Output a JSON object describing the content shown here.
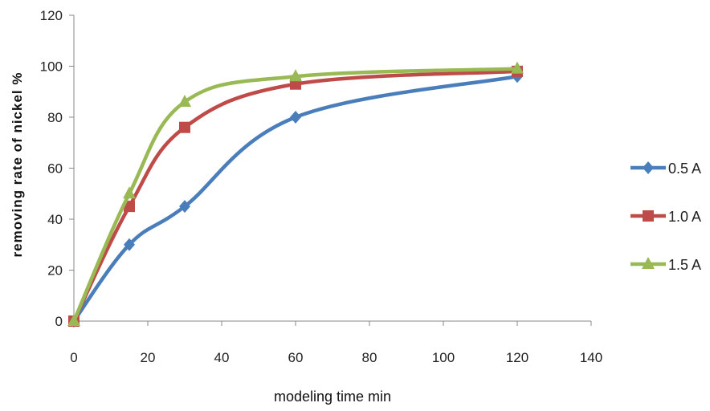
{
  "chart_data": {
    "type": "line",
    "title": "",
    "xlabel": "modeling time min",
    "ylabel": "removing rate of nickel %",
    "xlim": [
      0,
      140
    ],
    "ylim": [
      0,
      120
    ],
    "xticks": [
      "0",
      "20",
      "40",
      "60",
      "80",
      "100",
      "120",
      "140"
    ],
    "yticks": [
      "0",
      "20",
      "40",
      "60",
      "80",
      "100",
      "120"
    ],
    "grid": false,
    "legend_position": "right",
    "series": [
      {
        "name": "0.5  A",
        "marker": "diamond",
        "color": "#4a7ebb",
        "x": [
          0,
          15,
          30,
          60,
          120
        ],
        "y": [
          0,
          30,
          45,
          80,
          96
        ]
      },
      {
        "name": "1.0 A",
        "marker": "square",
        "color": "#be4b48",
        "x": [
          0,
          15,
          30,
          60,
          120
        ],
        "y": [
          0,
          45,
          76,
          93,
          98
        ]
      },
      {
        "name": "1.5 A",
        "marker": "triangle",
        "color": "#98b954",
        "x": [
          0,
          15,
          30,
          60,
          120
        ],
        "y": [
          0,
          50,
          86,
          96,
          99
        ]
      }
    ]
  }
}
